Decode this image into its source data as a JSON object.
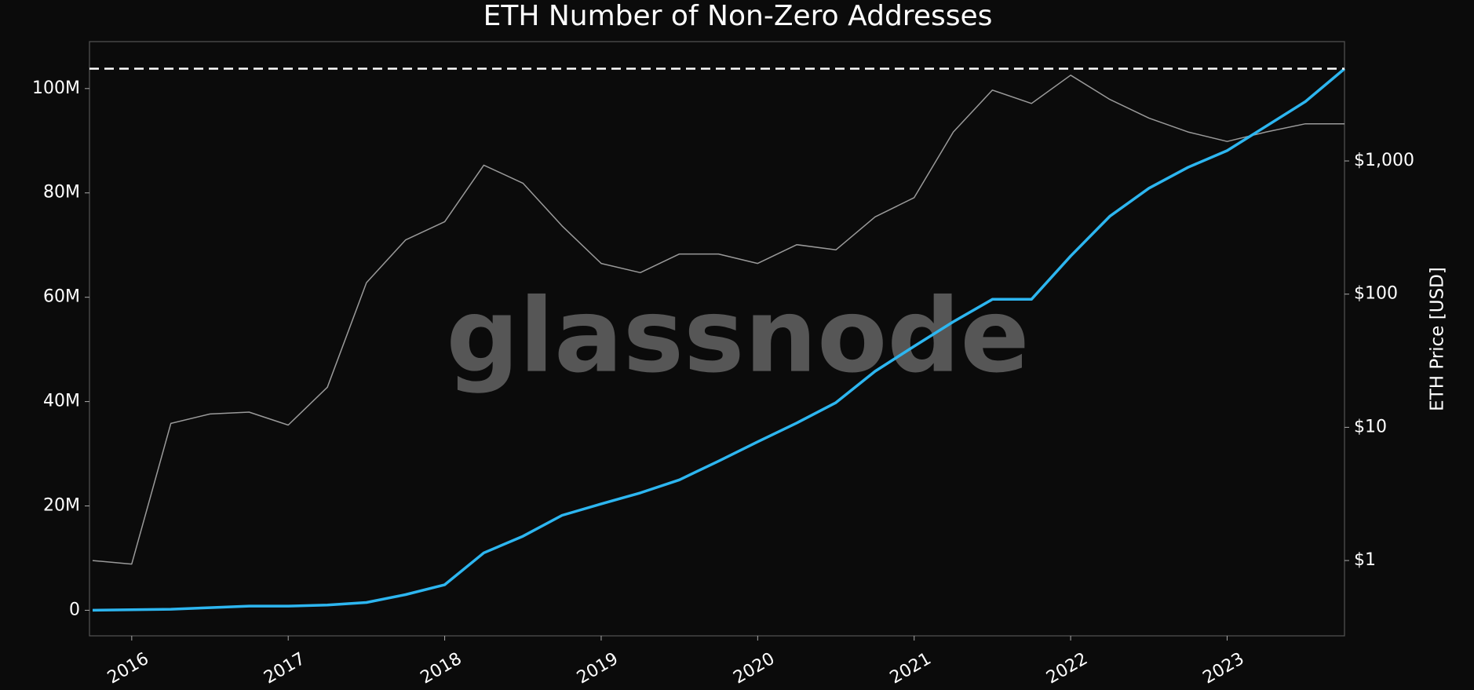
{
  "chart_data": {
    "type": "line",
    "title": "ETH Number of Non-Zero Addresses",
    "y2_label": "ETH Price [USD]",
    "watermark": "glassnode",
    "x": [
      2015.75,
      2016.0,
      2016.25,
      2016.5,
      2016.75,
      2017.0,
      2017.25,
      2017.5,
      2017.75,
      2018.0,
      2018.25,
      2018.5,
      2018.75,
      2019.0,
      2019.25,
      2019.5,
      2019.75,
      2020.0,
      2020.25,
      2020.5,
      2020.75,
      2021.0,
      2021.25,
      2021.5,
      2021.75,
      2022.0,
      2022.25,
      2022.5,
      2022.75,
      2023.0,
      2023.25,
      2023.5,
      2023.75
    ],
    "series": [
      {
        "color": "#2db6f0",
        "values": [
          0,
          100000,
          200000,
          500000,
          800000,
          800000,
          1000000,
          1500000,
          3000000,
          4900000,
          11000000,
          14200000,
          18200000,
          20400000,
          22500000,
          25000000,
          28600000,
          32300000,
          35900000,
          39800000,
          45800000,
          50600000,
          55300000,
          59600000,
          59600000,
          67900000,
          75500000,
          80900000,
          84900000,
          88100000,
          92800000,
          97500000,
          103800000
        ]
      },
      {
        "color": "#9a9a9a",
        "axis": "y2",
        "values": [
          1.0,
          0.94,
          10.7,
          12.6,
          13,
          10.4,
          20,
          122,
          255,
          350,
          930,
          680,
          325,
          170,
          145,
          200,
          200,
          170,
          235,
          215,
          380,
          530,
          1650,
          3400,
          2700,
          4400,
          2900,
          2100,
          1650,
          1400,
          1650,
          1900,
          1900
        ]
      }
    ],
    "xlim": [
      2015.73,
      2023.75
    ],
    "xticks": [
      2016,
      2017,
      2018,
      2019,
      2020,
      2021,
      2022,
      2023
    ],
    "ylim": [
      -4900000,
      109000000
    ],
    "yticks": [
      0,
      {
        "value": 20000000,
        "label": "20M"
      },
      {
        "value": 40000000,
        "label": "40M"
      },
      {
        "value": 60000000,
        "label": "60M"
      },
      {
        "value": 80000000,
        "label": "80M"
      },
      {
        "value": 100000000,
        "label": "100M"
      }
    ],
    "y2lim": [
      0.272,
      7870
    ],
    "y2ticks": [
      {
        "value": 1,
        "label": "$1"
      },
      {
        "value": 10,
        "label": "$10"
      },
      {
        "value": 100,
        "label": "$100"
      },
      {
        "value": 1000,
        "label": "$1,000"
      }
    ],
    "y2_log": true,
    "reference_line": 103800000,
    "grid": false
  }
}
